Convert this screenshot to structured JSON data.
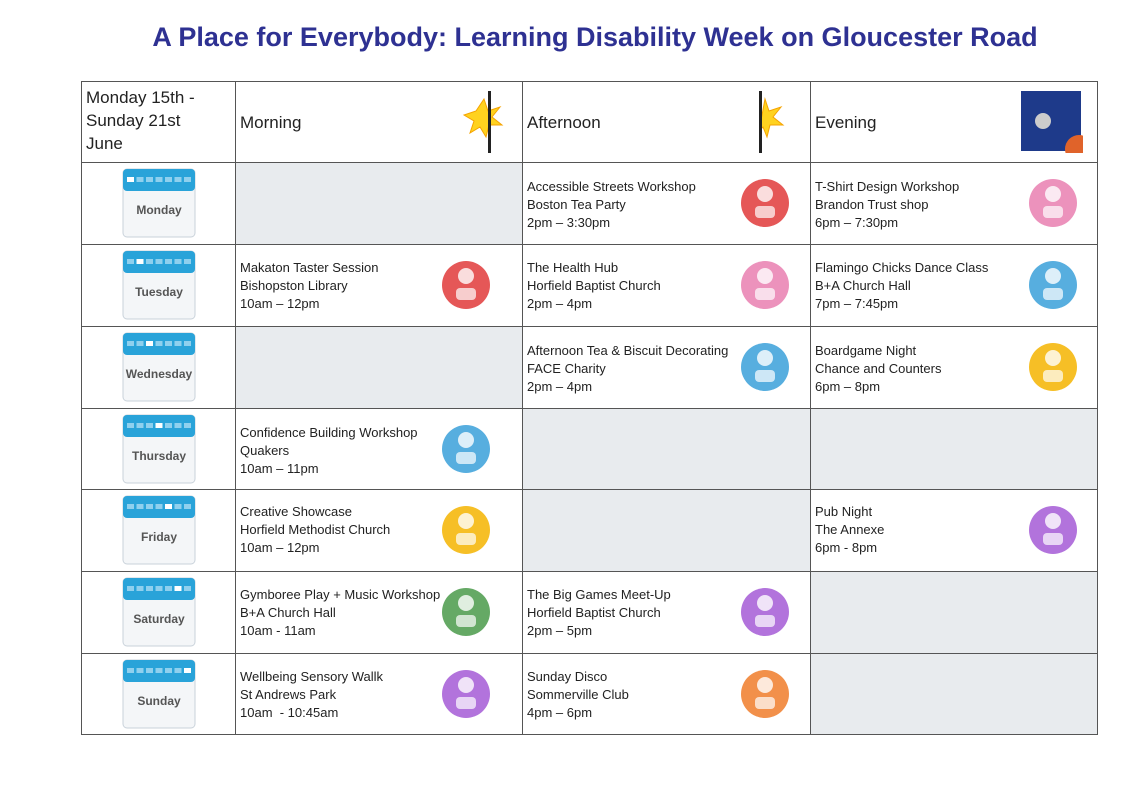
{
  "title": "A Place for Everybody: Learning Disability Week on Gloucester Road",
  "table": {
    "header": {
      "dates": "Monday 15th - Sunday 21st June",
      "columns": [
        "Morning",
        "Afternoon",
        "Evening"
      ]
    },
    "rows": [
      {
        "day": "Monday",
        "slots": [
          null,
          {
            "name": "Accessible Streets Workshop",
            "place": "Boston Tea Party",
            "time": "2pm – 3:30pm"
          },
          {
            "name": "T-Shirt Design Workshop",
            "place": "Brandon Trust shop",
            "time": "6pm – 7:30pm"
          }
        ]
      },
      {
        "day": "Tuesday",
        "slots": [
          {
            "name": "Makaton Taster Session",
            "place": "Bishopston Library",
            "time": "10am – 12pm"
          },
          {
            "name": "The Health Hub",
            "place": "Horfield Baptist Church",
            "time": "2pm – 4pm"
          },
          {
            "name": "Flamingo Chicks Dance Class",
            "place": "B+A Church Hall",
            "time": "7pm – 7:45pm"
          }
        ]
      },
      {
        "day": "Wednesday",
        "slots": [
          null,
          {
            "name": "Afternoon Tea & Biscuit Decorating",
            "place": "FACE Charity",
            "time": "2pm – 4pm"
          },
          {
            "name": "Boardgame Night",
            "place": "Chance and Counters",
            "time": "6pm – 8pm"
          }
        ]
      },
      {
        "day": "Thursday",
        "slots": [
          {
            "name": "Confidence Building Workshop",
            "place": "Quakers",
            "time": "10am – 11pm"
          },
          null,
          null
        ]
      },
      {
        "day": "Friday",
        "slots": [
          {
            "name": "Creative Showcase",
            "place": "Horfield Methodist Church",
            "time": "10am – 12pm"
          },
          null,
          {
            "name": "Pub Night",
            "place": "The Annexe",
            "time": "6pm - 8pm"
          }
        ]
      },
      {
        "day": "Saturday",
        "slots": [
          {
            "name": "Gymboree Play + Music Workshop",
            "place": "B+A Church Hall",
            "time": "10am - 11am"
          },
          {
            "name": "The Big Games Meet-Up",
            "place": "Horfield Baptist Church",
            "time": "2pm – 5pm"
          },
          null
        ]
      },
      {
        "day": "Sunday",
        "slots": [
          {
            "name": "Wellbeing Sensory Wallk",
            "place": "St Andrews Park",
            "time": "10am  - 10:45am"
          },
          {
            "name": "Sunday Disco",
            "place": "Sommerville Club",
            "time": "4pm – 6pm"
          },
          null
        ]
      }
    ]
  }
}
